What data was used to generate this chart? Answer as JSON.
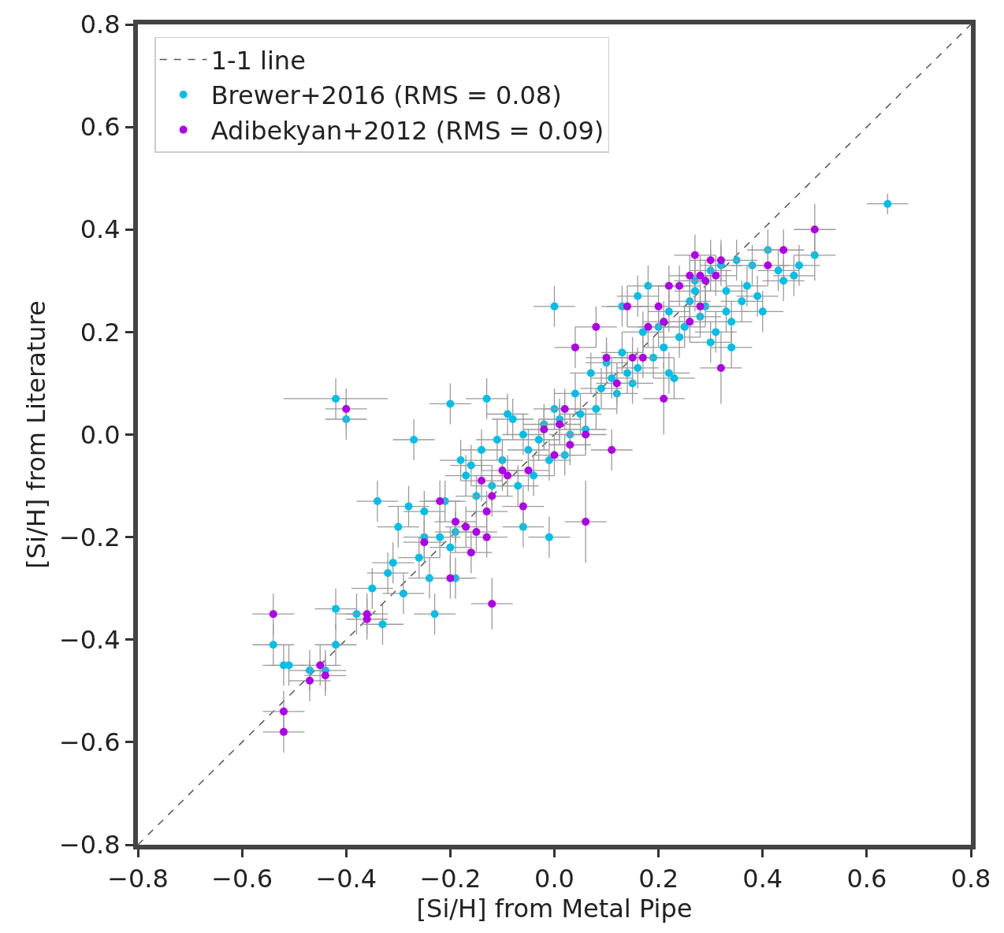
{
  "chart_data": {
    "type": "scatter",
    "xlabel": "[Si/H] from Metal Pipe",
    "ylabel": "[Si/H] from Literature",
    "xlim": [
      -0.8,
      0.8
    ],
    "ylim": [
      -0.8,
      0.8
    ],
    "xticks": [
      {
        "value": -0.8,
        "label": "−0.8"
      },
      {
        "value": -0.6,
        "label": "−0.6"
      },
      {
        "value": -0.4,
        "label": "−0.4"
      },
      {
        "value": -0.2,
        "label": "−0.2"
      },
      {
        "value": 0,
        "label": "0.0"
      },
      {
        "value": 0.2,
        "label": "0.2"
      },
      {
        "value": 0.4,
        "label": "0.4"
      },
      {
        "value": 0.6,
        "label": "0.6"
      },
      {
        "value": 0.8,
        "label": "0.8"
      }
    ],
    "yticks": [
      {
        "value": -0.8,
        "label": "−0.8"
      },
      {
        "value": -0.6,
        "label": "−0.6"
      },
      {
        "value": -0.4,
        "label": "−0.4"
      },
      {
        "value": -0.2,
        "label": "−0.2"
      },
      {
        "value": 0,
        "label": "0.0"
      },
      {
        "value": 0.2,
        "label": "0.2"
      },
      {
        "value": 0.4,
        "label": "0.4"
      },
      {
        "value": 0.6,
        "label": "0.6"
      },
      {
        "value": 0.8,
        "label": "0.8"
      }
    ],
    "legend": "top left",
    "marker": "circle",
    "series": [
      {
        "name": "1-1 line",
        "type": "line",
        "marker": "none",
        "line_style": "dashed",
        "color": "#555555",
        "x": [
          -0.8,
          0.8
        ],
        "values": [
          -0.8,
          0.8
        ]
      },
      {
        "name": "Brewer+2016 (RMS = 0.08)",
        "color": "#00bfe8",
        "x": [
          0.64,
          0.5,
          0.47,
          0.46,
          0.44,
          0.43,
          0.41,
          0.4,
          0.39,
          0.38,
          0.37,
          0.36,
          0.35,
          0.34,
          0.34,
          0.33,
          0.32,
          0.31,
          0.3,
          0.3,
          0.29,
          0.28,
          0.27,
          0.27,
          0.26,
          0.25,
          0.24,
          0.23,
          0.22,
          0.22,
          0.21,
          0.2,
          0.19,
          0.18,
          0.17,
          0.16,
          0.16,
          0.15,
          0.14,
          0.13,
          0.13,
          0.12,
          0.11,
          0.1,
          0.09,
          0.08,
          0.07,
          0.06,
          0.05,
          0.04,
          0.03,
          0.02,
          0.01,
          0.0,
          0.0,
          -0.01,
          -0.02,
          -0.03,
          -0.04,
          -0.05,
          -0.06,
          -0.07,
          -0.08,
          -0.09,
          -0.1,
          -0.11,
          -0.12,
          -0.13,
          -0.14,
          -0.15,
          -0.16,
          -0.17,
          -0.18,
          -0.19,
          -0.2,
          -0.2,
          -0.21,
          -0.22,
          -0.23,
          -0.24,
          -0.25,
          -0.25,
          -0.26,
          -0.27,
          -0.28,
          -0.29,
          -0.3,
          -0.31,
          -0.32,
          -0.33,
          -0.34,
          -0.35,
          -0.38,
          -0.4,
          -0.42,
          -0.42,
          -0.42,
          -0.44,
          -0.47,
          -0.51,
          -0.52,
          -0.54,
          -0.19,
          -0.01,
          0.33,
          -0.06
        ],
        "values": [
          0.45,
          0.35,
          0.33,
          0.31,
          0.3,
          0.32,
          0.36,
          0.24,
          0.27,
          0.33,
          0.29,
          0.26,
          0.34,
          0.17,
          0.22,
          0.28,
          0.33,
          0.2,
          0.32,
          0.18,
          0.25,
          0.23,
          0.28,
          0.3,
          0.26,
          0.21,
          0.19,
          0.11,
          0.24,
          0.12,
          0.17,
          0.21,
          0.15,
          0.29,
          0.2,
          0.27,
          0.13,
          0.1,
          0.12,
          0.16,
          0.25,
          0.08,
          0.11,
          0.14,
          0.09,
          0.05,
          0.12,
          0.01,
          0.04,
          0.08,
          0.0,
          -0.04,
          0.03,
          0.25,
          0.05,
          -0.05,
          0.02,
          -0.01,
          -0.08,
          -0.03,
          0.0,
          -0.1,
          0.03,
          0.04,
          -0.05,
          -0.01,
          -0.1,
          0.07,
          -0.03,
          -0.12,
          -0.06,
          -0.08,
          -0.05,
          -0.19,
          0.06,
          -0.22,
          -0.13,
          -0.2,
          -0.35,
          -0.28,
          -0.2,
          -0.15,
          -0.24,
          -0.01,
          -0.14,
          -0.31,
          -0.18,
          -0.25,
          -0.27,
          -0.37,
          -0.13,
          -0.3,
          -0.35,
          0.03,
          0.07,
          -0.34,
          -0.41,
          -0.46,
          -0.46,
          -0.45,
          -0.45,
          -0.41,
          -0.28,
          -0.2,
          0.24,
          -0.18
        ],
        "errors": [
          0.02,
          0.05,
          0.04,
          0.04,
          0.04,
          0.04,
          0.04,
          0.04,
          0.04,
          0.04,
          0.04,
          0.04,
          0.04,
          0.04,
          0.04,
          0.04,
          0.04,
          0.04,
          0.04,
          0.04,
          0.04,
          0.04,
          0.04,
          0.04,
          0.04,
          0.04,
          0.04,
          0.04,
          0.04,
          0.04,
          0.04,
          0.04,
          0.04,
          0.04,
          0.04,
          0.04,
          0.04,
          0.04,
          0.04,
          0.04,
          0.04,
          0.04,
          0.04,
          0.04,
          0.04,
          0.04,
          0.04,
          0.04,
          0.04,
          0.04,
          0.04,
          0.04,
          0.04,
          0.04,
          0.04,
          0.04,
          0.04,
          0.04,
          0.04,
          0.04,
          0.04,
          0.04,
          0.04,
          0.04,
          0.04,
          0.04,
          0.04,
          0.04,
          0.04,
          0.04,
          0.04,
          0.04,
          0.04,
          0.04,
          0.04,
          0.04,
          0.04,
          0.04,
          0.04,
          0.04,
          0.04,
          0.04,
          0.04,
          0.04,
          0.04,
          0.04,
          0.04,
          0.04,
          0.04,
          0.04,
          0.04,
          0.04,
          0.04,
          0.04,
          0.04,
          0.04,
          0.04,
          0.04,
          0.04,
          0.04,
          0.04,
          0.04,
          0.04,
          0.04,
          0.04,
          0.04
        ],
        "xerrors": [
          0.04,
          0.04,
          0.04,
          0.04,
          0.04,
          0.04,
          0.04,
          0.04,
          0.04,
          0.04,
          0.04,
          0.04,
          0.04,
          0.04,
          0.04,
          0.04,
          0.04,
          0.04,
          0.04,
          0.04,
          0.04,
          0.04,
          0.04,
          0.04,
          0.04,
          0.04,
          0.04,
          0.04,
          0.04,
          0.04,
          0.04,
          0.04,
          0.04,
          0.04,
          0.04,
          0.04,
          0.04,
          0.04,
          0.04,
          0.04,
          0.04,
          0.04,
          0.04,
          0.04,
          0.04,
          0.04,
          0.04,
          0.04,
          0.04,
          0.04,
          0.04,
          0.04,
          0.04,
          0.04,
          0.04,
          0.04,
          0.04,
          0.04,
          0.04,
          0.04,
          0.04,
          0.04,
          0.04,
          0.04,
          0.04,
          0.04,
          0.04,
          0.04,
          0.04,
          0.04,
          0.04,
          0.04,
          0.04,
          0.04,
          0.04,
          0.04,
          0.04,
          0.04,
          0.04,
          0.04,
          0.04,
          0.04,
          0.04,
          0.04,
          0.04,
          0.04,
          0.04,
          0.04,
          0.04,
          0.04,
          0.04,
          0.04,
          0.04,
          0.04,
          0.1,
          0.04,
          0.04,
          0.04,
          0.04,
          0.04,
          0.04,
          0.04,
          0.04,
          0.04,
          0.04,
          0.04
        ]
      },
      {
        "name": "Adibekyan+2012 (RMS = 0.09)",
        "color": "#b000e8",
        "x": [
          0.5,
          0.44,
          0.41,
          0.32,
          0.31,
          0.3,
          0.29,
          0.28,
          0.27,
          0.26,
          0.32,
          0.28,
          0.26,
          0.24,
          0.22,
          0.21,
          0.2,
          0.21,
          0.18,
          0.17,
          0.15,
          0.14,
          0.12,
          0.1,
          0.08,
          0.06,
          0.04,
          0.03,
          0.02,
          0.01,
          0.0,
          -0.02,
          -0.05,
          -0.06,
          0.06,
          0.11,
          -0.09,
          -0.1,
          -0.12,
          -0.12,
          -0.13,
          -0.13,
          -0.14,
          -0.15,
          -0.16,
          -0.17,
          -0.19,
          -0.2,
          -0.22,
          -0.25,
          -0.36,
          -0.36,
          -0.4,
          -0.44,
          -0.45,
          -0.47,
          -0.52,
          -0.52,
          -0.54
        ],
        "values": [
          0.4,
          0.36,
          0.33,
          0.34,
          0.31,
          0.34,
          0.3,
          0.31,
          0.35,
          0.31,
          0.13,
          0.25,
          0.22,
          0.29,
          0.29,
          0.22,
          0.25,
          0.07,
          0.21,
          0.15,
          0.15,
          0.25,
          0.1,
          0.15,
          0.21,
          0.0,
          0.17,
          -0.02,
          0.05,
          0.02,
          -0.04,
          0.01,
          -0.07,
          -0.14,
          -0.17,
          -0.03,
          -0.08,
          -0.07,
          -0.12,
          -0.33,
          -0.15,
          -0.2,
          -0.09,
          -0.19,
          -0.23,
          -0.18,
          -0.17,
          -0.28,
          -0.13,
          -0.21,
          -0.35,
          -0.36,
          0.05,
          -0.47,
          -0.45,
          -0.48,
          -0.54,
          -0.58,
          -0.35
        ],
        "errors": [
          0.05,
          0.04,
          0.04,
          0.04,
          0.04,
          0.04,
          0.04,
          0.04,
          0.04,
          0.04,
          0.07,
          0.04,
          0.04,
          0.04,
          0.04,
          0.04,
          0.04,
          0.07,
          0.04,
          0.04,
          0.04,
          0.04,
          0.04,
          0.04,
          0.04,
          0.04,
          0.04,
          0.04,
          0.04,
          0.04,
          0.04,
          0.04,
          0.04,
          0.04,
          0.08,
          0.04,
          0.04,
          0.04,
          0.04,
          0.05,
          0.04,
          0.04,
          0.04,
          0.04,
          0.04,
          0.04,
          0.04,
          0.04,
          0.04,
          0.04,
          0.04,
          0.04,
          0.04,
          0.04,
          0.04,
          0.04,
          0.04,
          0.04,
          0.04
        ],
        "xerrors": [
          0.04,
          0.04,
          0.04,
          0.04,
          0.04,
          0.04,
          0.04,
          0.04,
          0.04,
          0.04,
          0.04,
          0.04,
          0.04,
          0.04,
          0.04,
          0.04,
          0.04,
          0.04,
          0.04,
          0.04,
          0.04,
          0.04,
          0.04,
          0.04,
          0.04,
          0.04,
          0.04,
          0.04,
          0.04,
          0.04,
          0.04,
          0.04,
          0.04,
          0.04,
          0.04,
          0.04,
          0.04,
          0.04,
          0.04,
          0.04,
          0.04,
          0.04,
          0.04,
          0.04,
          0.04,
          0.04,
          0.04,
          0.04,
          0.04,
          0.04,
          0.04,
          0.04,
          0.04,
          0.04,
          0.04,
          0.04,
          0.04,
          0.04,
          0.04
        ]
      }
    ]
  }
}
